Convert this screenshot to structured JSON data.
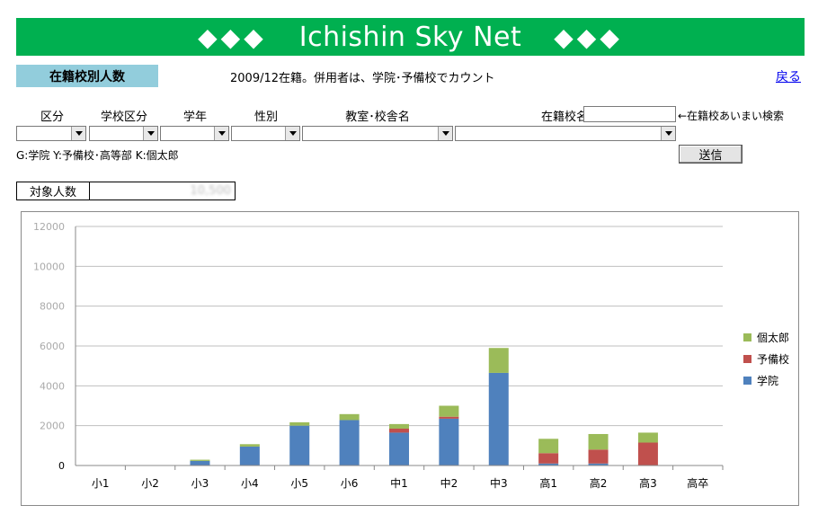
{
  "header": {
    "title": "Ichishin Sky Net",
    "diamonds": "◆◆◆"
  },
  "page_label": "在籍校別人数",
  "note": "2009/12在籍。併用者は、学院･予備校でカウント",
  "back_link": "戻る",
  "filters": {
    "labels": [
      "区分",
      "学校区分",
      "学年",
      "性別",
      "教室･校舎名",
      "在籍校名"
    ],
    "fuzzy_search_label": "←在籍校あいまい検索",
    "code_legend": "G:学院 Y:予備校･高等部 K:個太郎",
    "send_label": "送信"
  },
  "count": {
    "label": "対象人数",
    "value": "10,500"
  },
  "colors": {
    "gakuin": "#4f81bd",
    "yobiko": "#c0504d",
    "kotaro": "#9bbb59",
    "banner": "#00b050"
  },
  "chart_data": {
    "type": "bar",
    "stacked": true,
    "categories": [
      "小1",
      "小2",
      "小3",
      "小4",
      "小5",
      "小6",
      "中1",
      "中2",
      "中3",
      "高1",
      "高2",
      "高3",
      "高卒"
    ],
    "series": [
      {
        "name": "学院",
        "color": "#4f81bd",
        "values": [
          0,
          0,
          230,
          950,
          2000,
          2280,
          1650,
          2350,
          4650,
          100,
          100,
          0,
          0
        ]
      },
      {
        "name": "予備校",
        "color": "#c0504d",
        "values": [
          0,
          0,
          0,
          0,
          0,
          0,
          200,
          100,
          0,
          520,
          700,
          1150,
          0
        ]
      },
      {
        "name": "個太郎",
        "color": "#9bbb59",
        "values": [
          0,
          0,
          60,
          120,
          170,
          300,
          230,
          550,
          1250,
          720,
          780,
          500,
          0
        ]
      }
    ],
    "ylim": [
      0,
      12000
    ],
    "yticks": [
      "0",
      "2000",
      "4000",
      "6000",
      "8000",
      "10000",
      "12000"
    ],
    "legend_position": "right",
    "grid": true
  }
}
